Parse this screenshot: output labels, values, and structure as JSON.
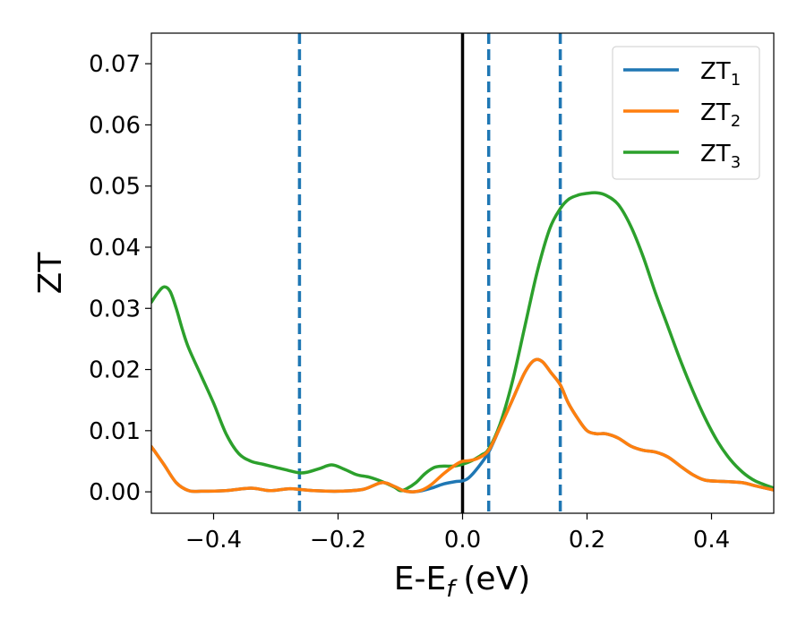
{
  "chart_data": {
    "type": "line",
    "xlabel": "E-E",
    "xlabel_sub": "f",
    "xlabel_unit": "(eV)",
    "ylabel": "ZT",
    "xlim": [
      -0.5,
      0.5
    ],
    "ylim": [
      -0.0035,
      0.075
    ],
    "xticks": [
      -0.4,
      -0.2,
      0.0,
      0.2,
      0.4
    ],
    "xtick_labels": [
      "−0.4",
      "−0.2",
      "0.0",
      "0.2",
      "0.4"
    ],
    "yticks": [
      0.0,
      0.01,
      0.02,
      0.03,
      0.04,
      0.05,
      0.06,
      0.07
    ],
    "ytick_labels": [
      "0.00",
      "0.01",
      "0.02",
      "0.03",
      "0.04",
      "0.05",
      "0.06",
      "0.07"
    ],
    "legend_position": "top-right",
    "grid": false,
    "vlines": [
      {
        "x": 0.0,
        "color": "#000000",
        "style": "solid"
      },
      {
        "x": -0.262,
        "color": "#1f77b4",
        "style": "dashed"
      },
      {
        "x": 0.042,
        "color": "#1f77b4",
        "style": "dashed"
      },
      {
        "x": 0.157,
        "color": "#1f77b4",
        "style": "dashed"
      }
    ],
    "series": [
      {
        "name": "ZT",
        "sub": "1",
        "color": "#1f77b4",
        "points": [
          [
            -0.5,
            0.0074
          ],
          [
            -0.48,
            0.0045
          ],
          [
            -0.46,
            0.0015
          ],
          [
            -0.44,
            0.0002
          ],
          [
            -0.42,
            0.0001
          ],
          [
            -0.38,
            0.0002
          ],
          [
            -0.34,
            0.0006
          ],
          [
            -0.31,
            0.0002
          ],
          [
            -0.28,
            0.0005
          ],
          [
            -0.262,
            0.0004
          ],
          [
            -0.24,
            0.0002
          ],
          [
            -0.2,
            0.0001
          ],
          [
            -0.16,
            0.0004
          ],
          [
            -0.13,
            0.0015
          ],
          [
            -0.11,
            0.0009
          ],
          [
            -0.095,
            0.0002
          ],
          [
            -0.08,
            0.0
          ],
          [
            -0.065,
            0.0002
          ],
          [
            -0.05,
            0.0006
          ],
          [
            -0.03,
            0.0013
          ],
          [
            -0.01,
            0.0017
          ],
          [
            0.0,
            0.0018
          ],
          [
            0.01,
            0.0023
          ],
          [
            0.025,
            0.004
          ],
          [
            0.042,
            0.0065
          ],
          [
            0.06,
            0.0105
          ],
          [
            0.08,
            0.015
          ],
          [
            0.1,
            0.0195
          ],
          [
            0.115,
            0.0215
          ],
          [
            0.128,
            0.0213
          ],
          [
            0.142,
            0.0195
          ],
          [
            0.157,
            0.0175
          ],
          [
            0.17,
            0.0145
          ],
          [
            0.185,
            0.012
          ],
          [
            0.2,
            0.01
          ],
          [
            0.215,
            0.0095
          ],
          [
            0.23,
            0.0095
          ],
          [
            0.25,
            0.0088
          ],
          [
            0.27,
            0.0075
          ],
          [
            0.29,
            0.0068
          ],
          [
            0.31,
            0.0065
          ],
          [
            0.33,
            0.0057
          ],
          [
            0.35,
            0.0042
          ],
          [
            0.37,
            0.0028
          ],
          [
            0.39,
            0.0019
          ],
          [
            0.42,
            0.0017
          ],
          [
            0.45,
            0.0015
          ],
          [
            0.47,
            0.001
          ],
          [
            0.5,
            0.0003
          ]
        ]
      },
      {
        "name": "ZT",
        "sub": "2",
        "color": "#ff7f0e",
        "points": [
          [
            -0.5,
            0.0074
          ],
          [
            -0.48,
            0.0045
          ],
          [
            -0.46,
            0.0015
          ],
          [
            -0.44,
            0.0002
          ],
          [
            -0.42,
            0.0001
          ],
          [
            -0.38,
            0.0002
          ],
          [
            -0.34,
            0.0006
          ],
          [
            -0.31,
            0.0002
          ],
          [
            -0.28,
            0.0005
          ],
          [
            -0.262,
            0.0004
          ],
          [
            -0.24,
            0.0002
          ],
          [
            -0.2,
            0.0001
          ],
          [
            -0.16,
            0.0004
          ],
          [
            -0.13,
            0.0015
          ],
          [
            -0.11,
            0.0009
          ],
          [
            -0.095,
            0.0002
          ],
          [
            -0.08,
            0.0
          ],
          [
            -0.065,
            0.0003
          ],
          [
            -0.05,
            0.0012
          ],
          [
            -0.03,
            0.003
          ],
          [
            -0.01,
            0.0045
          ],
          [
            0.0,
            0.005
          ],
          [
            0.01,
            0.0051
          ],
          [
            0.025,
            0.0055
          ],
          [
            0.042,
            0.0068
          ],
          [
            0.06,
            0.0105
          ],
          [
            0.08,
            0.015
          ],
          [
            0.1,
            0.0195
          ],
          [
            0.115,
            0.0215
          ],
          [
            0.128,
            0.0213
          ],
          [
            0.142,
            0.0195
          ],
          [
            0.157,
            0.0175
          ],
          [
            0.17,
            0.0145
          ],
          [
            0.185,
            0.012
          ],
          [
            0.2,
            0.01
          ],
          [
            0.215,
            0.0095
          ],
          [
            0.23,
            0.0095
          ],
          [
            0.25,
            0.0088
          ],
          [
            0.27,
            0.0075
          ],
          [
            0.29,
            0.0068
          ],
          [
            0.31,
            0.0065
          ],
          [
            0.33,
            0.0057
          ],
          [
            0.35,
            0.0042
          ],
          [
            0.37,
            0.0028
          ],
          [
            0.39,
            0.0019
          ],
          [
            0.42,
            0.0017
          ],
          [
            0.45,
            0.0015
          ],
          [
            0.47,
            0.001
          ],
          [
            0.5,
            0.0003
          ]
        ]
      },
      {
        "name": "ZT",
        "sub": "3",
        "color": "#2ca02c",
        "points": [
          [
            -0.5,
            0.031
          ],
          [
            -0.49,
            0.0325
          ],
          [
            -0.48,
            0.0335
          ],
          [
            -0.47,
            0.0328
          ],
          [
            -0.46,
            0.03
          ],
          [
            -0.45,
            0.0265
          ],
          [
            -0.44,
            0.0235
          ],
          [
            -0.42,
            0.019
          ],
          [
            -0.4,
            0.0145
          ],
          [
            -0.38,
            0.0095
          ],
          [
            -0.36,
            0.0063
          ],
          [
            -0.34,
            0.005
          ],
          [
            -0.32,
            0.0045
          ],
          [
            -0.3,
            0.004
          ],
          [
            -0.28,
            0.0035
          ],
          [
            -0.262,
            0.0031
          ],
          [
            -0.25,
            0.0032
          ],
          [
            -0.23,
            0.0038
          ],
          [
            -0.21,
            0.0044
          ],
          [
            -0.19,
            0.0037
          ],
          [
            -0.17,
            0.0028
          ],
          [
            -0.15,
            0.0024
          ],
          [
            -0.13,
            0.0017
          ],
          [
            -0.11,
            0.0008
          ],
          [
            -0.1,
            0.0002
          ],
          [
            -0.09,
            0.0005
          ],
          [
            -0.075,
            0.0015
          ],
          [
            -0.06,
            0.003
          ],
          [
            -0.045,
            0.004
          ],
          [
            -0.03,
            0.0042
          ],
          [
            -0.015,
            0.0042
          ],
          [
            0.0,
            0.0045
          ],
          [
            0.015,
            0.0051
          ],
          [
            0.03,
            0.006
          ],
          [
            0.042,
            0.007
          ],
          [
            0.06,
            0.011
          ],
          [
            0.08,
            0.018
          ],
          [
            0.1,
            0.027
          ],
          [
            0.12,
            0.036
          ],
          [
            0.14,
            0.043
          ],
          [
            0.157,
            0.0463
          ],
          [
            0.17,
            0.0478
          ],
          [
            0.185,
            0.0485
          ],
          [
            0.2,
            0.0488
          ],
          [
            0.215,
            0.0489
          ],
          [
            0.23,
            0.0485
          ],
          [
            0.25,
            0.047
          ],
          [
            0.27,
            0.0435
          ],
          [
            0.29,
            0.0385
          ],
          [
            0.31,
            0.0325
          ],
          [
            0.33,
            0.027
          ],
          [
            0.35,
            0.0215
          ],
          [
            0.37,
            0.0165
          ],
          [
            0.39,
            0.012
          ],
          [
            0.41,
            0.0082
          ],
          [
            0.43,
            0.0053
          ],
          [
            0.45,
            0.0032
          ],
          [
            0.47,
            0.0018
          ],
          [
            0.5,
            0.0006
          ]
        ]
      }
    ]
  }
}
